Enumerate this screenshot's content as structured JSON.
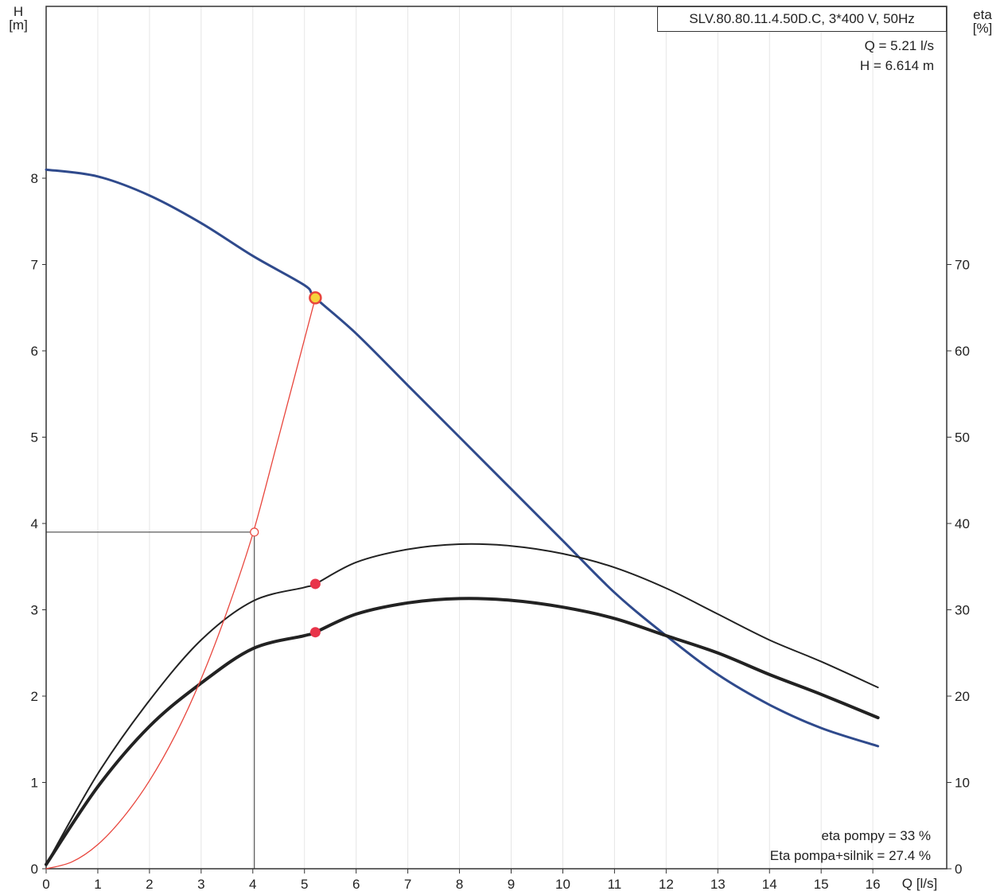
{
  "header": {
    "model": "SLV.80.80.11.4.50D.C, 3*400 V, 50Hz",
    "q_reading": "Q = 5.21 l/s",
    "h_reading": "H = 6.614 m"
  },
  "axes": {
    "left_label_line1": "H",
    "left_label_line2": "[m]",
    "right_label_line1": "eta",
    "right_label_line2": "[%]",
    "x_label": "Q [l/s]"
  },
  "notes": {
    "eta_pump": "eta pompy = 33 %",
    "eta_total": "Eta pompa+silnik = 27.4 %"
  },
  "chart_data": {
    "type": "line",
    "title": "SLV.80.80.11.4.50D.C, 3*400 V, 50Hz",
    "xlabel": "Q [l/s]",
    "ylabel": "H [m]",
    "y2label": "eta [%]",
    "xlim": [
      0,
      17
    ],
    "ylim": [
      0,
      10
    ],
    "y2lim": [
      0,
      100
    ],
    "x_ticks": [
      0,
      1,
      2,
      3,
      4,
      5,
      6,
      7,
      8,
      9,
      10,
      11,
      12,
      13,
      14,
      15,
      16
    ],
    "y_ticks": [
      0,
      1,
      2,
      3,
      4,
      5,
      6,
      7,
      8
    ],
    "y2_ticks": [
      0,
      10,
      20,
      30,
      40,
      50,
      60,
      70
    ],
    "grid": "vertical",
    "series": [
      {
        "name": "H",
        "axis": "left",
        "color": "#2f4a8c",
        "x": [
          0,
          1,
          2,
          3,
          4,
          5,
          5.21,
          6,
          7,
          8,
          9,
          10,
          11,
          12,
          13,
          14,
          15,
          16.1
        ],
        "y": [
          8.1,
          8.02,
          7.8,
          7.48,
          7.1,
          6.76,
          6.614,
          6.2,
          5.6,
          5.0,
          4.4,
          3.8,
          3.2,
          2.7,
          2.25,
          1.9,
          1.63,
          1.42
        ]
      },
      {
        "name": "eta pompy",
        "axis": "right",
        "color": "#222222",
        "x": [
          0,
          1,
          2,
          3,
          4,
          5,
          5.21,
          6,
          7,
          8,
          9,
          10,
          11,
          12,
          13,
          14,
          15,
          16.1
        ],
        "y": [
          0.5,
          11,
          19.5,
          26.5,
          31,
          32.6,
          33,
          35.5,
          37,
          37.6,
          37.4,
          36.5,
          34.9,
          32.5,
          29.5,
          26.5,
          24,
          21
        ]
      },
      {
        "name": "Eta pompa+silnik",
        "axis": "right",
        "color": "#222222",
        "x": [
          0,
          1,
          2,
          3,
          4,
          5,
          5.21,
          6,
          7,
          8,
          9,
          10,
          11,
          12,
          13,
          14,
          15,
          16.1
        ],
        "y": [
          0.5,
          9.5,
          16.5,
          21.5,
          25.5,
          27,
          27.4,
          29.5,
          30.8,
          31.3,
          31.1,
          30.3,
          29,
          27,
          25,
          22.5,
          20.2,
          17.5
        ]
      },
      {
        "name": "system",
        "axis": "left",
        "color": "#e8453c",
        "x": [
          0,
          0.5,
          1,
          1.5,
          2,
          2.5,
          3,
          3.5,
          4,
          4.5,
          5.21
        ],
        "y": [
          0,
          0.08,
          0.28,
          0.6,
          1.02,
          1.55,
          2.2,
          2.98,
          3.88,
          5.0,
          6.614
        ]
      }
    ],
    "points": [
      {
        "name": "operating-point",
        "axis": "left",
        "x": 5.21,
        "y": 6.614
      },
      {
        "name": "eta-pump-point",
        "axis": "right",
        "x": 5.21,
        "y": 33
      },
      {
        "name": "eta-total-point",
        "axis": "right",
        "x": 5.21,
        "y": 27.4
      },
      {
        "name": "marker-point",
        "axis": "left",
        "x": 4.03,
        "y": 3.9
      }
    ]
  }
}
